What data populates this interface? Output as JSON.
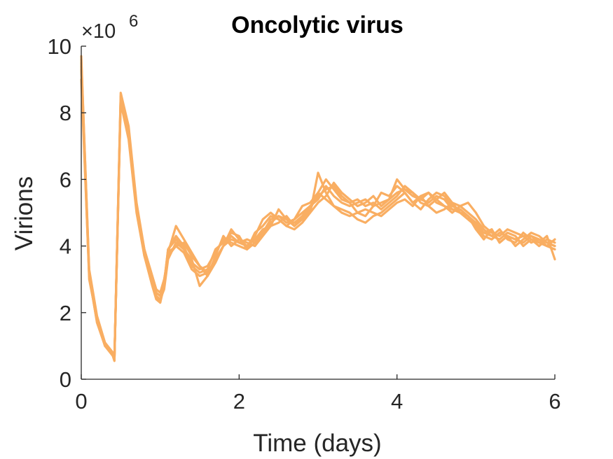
{
  "chart_data": {
    "type": "line",
    "title": "Oncolytic virus",
    "xlabel": "Time (days)",
    "ylabel": "Virions",
    "y_multiplier": {
      "base": "×10",
      "exponent": "6"
    },
    "xlim": [
      0,
      6
    ],
    "ylim": [
      0,
      10
    ],
    "xticks": [
      "0",
      "2",
      "4",
      "6"
    ],
    "yticks": [
      "0",
      "2",
      "4",
      "6",
      "8",
      "10"
    ],
    "grid": false,
    "legend": "none",
    "line_color": "#F9AE62",
    "x": [
      0,
      0.1,
      0.2,
      0.3,
      0.4,
      0.42,
      0.5,
      0.6,
      0.7,
      0.8,
      0.9,
      0.95,
      1.0,
      1.05,
      1.1,
      1.2,
      1.3,
      1.4,
      1.5,
      1.6,
      1.7,
      1.8,
      1.9,
      2.0,
      2.1,
      2.2,
      2.3,
      2.4,
      2.5,
      2.6,
      2.7,
      2.8,
      2.9,
      3.0,
      3.1,
      3.2,
      3.3,
      3.4,
      3.5,
      3.6,
      3.7,
      3.8,
      3.9,
      4.0,
      4.1,
      4.2,
      4.3,
      4.4,
      4.5,
      4.6,
      4.7,
      4.8,
      4.9,
      5.0,
      5.1,
      5.2,
      5.3,
      5.4,
      5.5,
      5.6,
      5.7,
      5.8,
      5.9,
      6.0
    ],
    "series": [
      {
        "values": [
          9.7,
          3.2,
          1.8,
          1.1,
          0.75,
          0.6,
          8.5,
          7.5,
          5.2,
          3.8,
          3.0,
          2.6,
          2.5,
          2.9,
          3.9,
          4.2,
          3.9,
          3.5,
          3.3,
          3.4,
          3.8,
          4.2,
          4.1,
          4.0,
          3.9,
          4.1,
          4.4,
          4.8,
          4.9,
          4.7,
          4.8,
          5.0,
          5.2,
          5.4,
          5.8,
          5.5,
          5.3,
          5.2,
          5.3,
          5.4,
          5.2,
          5.3,
          5.4,
          5.6,
          5.7,
          5.5,
          5.4,
          5.6,
          5.3,
          5.2,
          5.1,
          5.0,
          4.8,
          4.6,
          4.3,
          4.2,
          4.4,
          4.3,
          4.2,
          4.3,
          4.1,
          4.2,
          4.0,
          3.9
        ]
      },
      {
        "values": [
          9.5,
          3.1,
          1.7,
          1.0,
          0.7,
          0.55,
          8.3,
          7.2,
          5.0,
          3.7,
          2.8,
          2.4,
          2.3,
          2.8,
          3.8,
          4.6,
          4.2,
          3.8,
          3.4,
          3.2,
          3.6,
          4.0,
          4.5,
          4.2,
          4.0,
          4.3,
          4.8,
          5.0,
          4.8,
          4.6,
          4.5,
          4.7,
          5.0,
          6.2,
          5.6,
          5.2,
          5.0,
          4.9,
          5.0,
          5.1,
          5.0,
          4.9,
          5.1,
          5.3,
          5.4,
          5.2,
          5.5,
          5.2,
          5.0,
          5.1,
          5.3,
          5.0,
          4.9,
          4.5,
          4.2,
          4.5,
          4.1,
          4.3,
          4.0,
          4.2,
          4.4,
          4.3,
          4.1,
          4.0
        ]
      },
      {
        "values": [
          9.3,
          3.0,
          1.8,
          1.05,
          0.72,
          0.58,
          8.4,
          7.4,
          5.1,
          3.9,
          3.1,
          2.7,
          2.6,
          3.0,
          3.7,
          4.0,
          3.8,
          3.3,
          3.1,
          3.2,
          3.6,
          4.0,
          4.2,
          4.1,
          4.0,
          4.2,
          4.5,
          4.6,
          4.7,
          4.9,
          4.6,
          4.8,
          5.1,
          5.6,
          6.0,
          5.7,
          5.4,
          5.3,
          5.0,
          4.9,
          5.2,
          5.6,
          5.5,
          5.8,
          5.6,
          5.3,
          5.1,
          5.4,
          5.6,
          5.5,
          5.2,
          5.1,
          4.9,
          4.6,
          4.4,
          4.3,
          4.5,
          4.2,
          4.1,
          4.4,
          4.2,
          4.0,
          4.2,
          4.1
        ]
      },
      {
        "values": [
          9.6,
          3.3,
          1.9,
          1.1,
          0.8,
          0.6,
          8.6,
          7.6,
          5.3,
          3.9,
          3.0,
          2.5,
          2.4,
          2.7,
          3.6,
          4.1,
          3.9,
          3.6,
          2.8,
          3.1,
          3.7,
          4.3,
          4.0,
          4.2,
          4.1,
          4.0,
          4.3,
          4.6,
          5.1,
          4.8,
          4.7,
          4.9,
          5.0,
          5.3,
          5.5,
          5.9,
          5.6,
          5.4,
          5.2,
          5.3,
          5.5,
          5.2,
          5.4,
          6.0,
          5.7,
          5.6,
          5.3,
          5.2,
          5.4,
          5.6,
          5.3,
          5.2,
          5.0,
          4.8,
          4.5,
          4.3,
          4.2,
          4.4,
          4.3,
          4.0,
          4.2,
          4.1,
          4.3,
          3.6
        ]
      },
      {
        "values": [
          9.4,
          3.2,
          1.8,
          1.0,
          0.74,
          0.57,
          8.5,
          7.3,
          5.2,
          3.8,
          2.9,
          2.5,
          2.3,
          2.9,
          3.9,
          4.3,
          4.0,
          3.4,
          3.2,
          3.3,
          3.9,
          4.1,
          4.4,
          4.3,
          3.9,
          4.4,
          4.6,
          4.9,
          4.8,
          4.6,
          4.8,
          5.2,
          5.3,
          5.6,
          5.4,
          5.2,
          5.1,
          5.0,
          4.8,
          4.7,
          4.9,
          5.0,
          5.2,
          5.4,
          5.6,
          5.3,
          5.5,
          5.6,
          5.4,
          5.2,
          5.0,
          5.2,
          5.3,
          5.0,
          4.6,
          4.4,
          4.3,
          4.5,
          4.4,
          4.3,
          4.3,
          4.1,
          4.0,
          4.2
        ]
      },
      {
        "values": [
          9.0,
          3.1,
          1.7,
          1.05,
          0.7,
          0.56,
          8.4,
          7.5,
          5.1,
          3.7,
          3.0,
          2.6,
          2.5,
          2.8,
          3.8,
          4.0,
          4.1,
          3.7,
          3.4,
          3.1,
          3.5,
          4.0,
          4.3,
          4.1,
          4.2,
          4.1,
          4.4,
          4.7,
          4.9,
          4.8,
          4.6,
          4.9,
          5.2,
          5.5,
          5.7,
          5.8,
          5.5,
          5.3,
          5.4,
          5.2,
          5.3,
          5.1,
          5.3,
          5.5,
          5.8,
          5.6,
          5.4,
          5.3,
          5.5,
          5.4,
          5.1,
          5.1,
          4.9,
          4.7,
          4.4,
          4.5,
          4.1,
          4.3,
          4.2,
          4.1,
          4.3,
          4.2,
          4.1,
          4.0
        ]
      }
    ]
  }
}
